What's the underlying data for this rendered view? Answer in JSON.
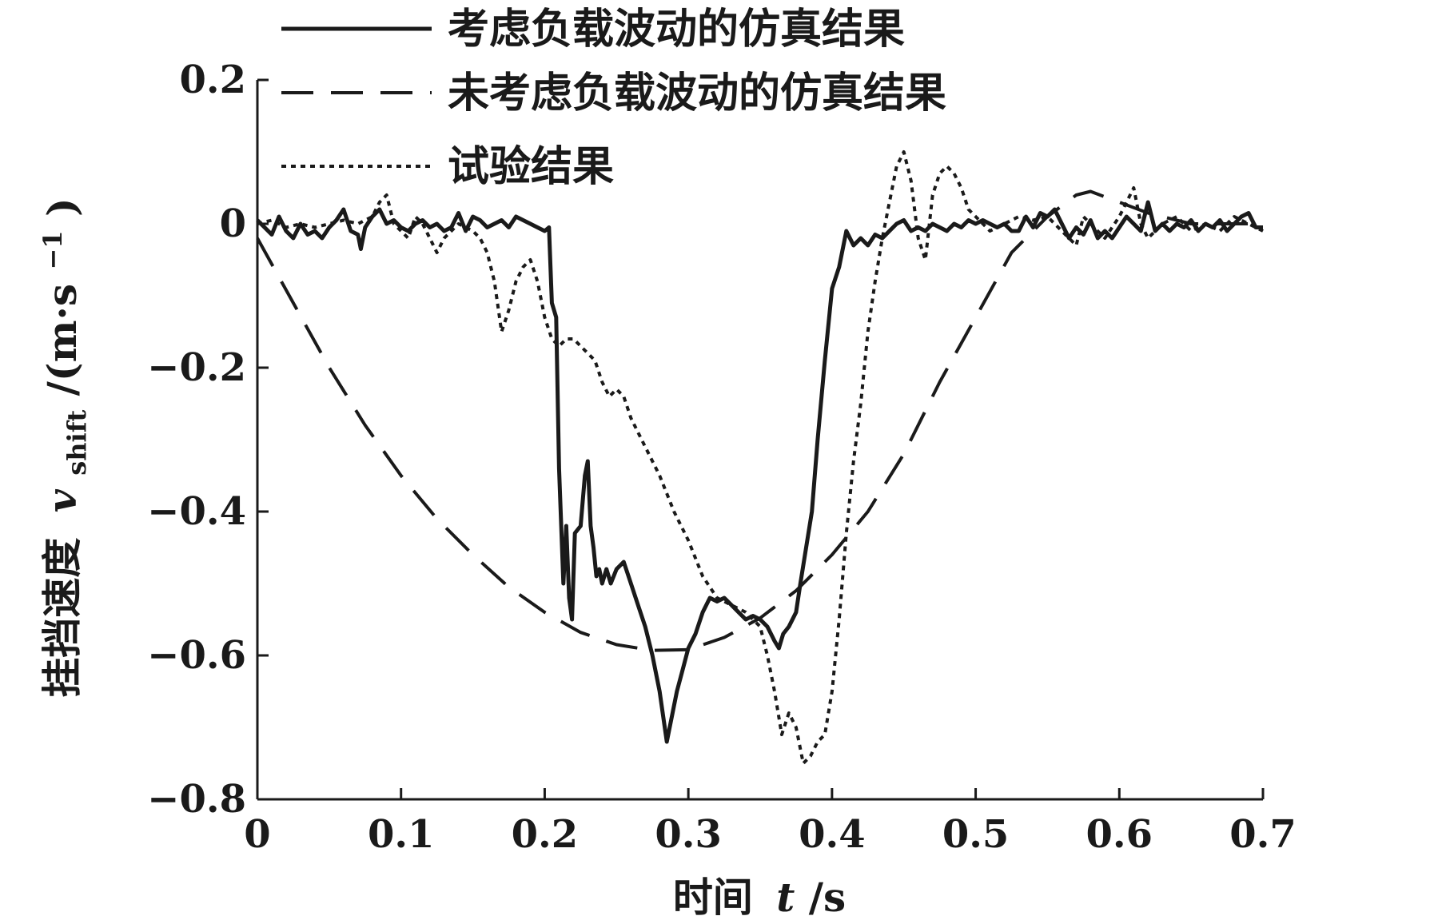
{
  "chart_data": {
    "type": "line",
    "xlabel": "时间 t/s",
    "ylabel": "挂挡速度 v_shift/(m·s⁻¹)",
    "xlim": [
      0,
      0.7
    ],
    "ylim": [
      -0.8,
      0.2
    ],
    "xticks": [
      0,
      0.1,
      0.2,
      0.3,
      0.4,
      0.5,
      0.6,
      0.7
    ],
    "xtick_labels": [
      "0",
      "0.1",
      "0.2",
      "0.3",
      "0.4",
      "0.5",
      "0.6",
      "0.7"
    ],
    "yticks": [
      0.2,
      0,
      -0.2,
      -0.4,
      -0.6,
      -0.8
    ],
    "ytick_labels": [
      "0.2",
      "0",
      "−0.2",
      "−0.4",
      "−0.6",
      "−0.8"
    ],
    "grid": false,
    "legend_position": "top",
    "series": [
      {
        "name": "考虑负载波动的仿真结果",
        "style": "solid",
        "color": "#1a1a1a",
        "points": [
          [
            0.0,
            0.005
          ],
          [
            0.005,
            -0.005
          ],
          [
            0.01,
            -0.015
          ],
          [
            0.015,
            0.01
          ],
          [
            0.02,
            -0.01
          ],
          [
            0.025,
            -0.02
          ],
          [
            0.03,
            0.0
          ],
          [
            0.035,
            -0.015
          ],
          [
            0.04,
            -0.01
          ],
          [
            0.045,
            -0.02
          ],
          [
            0.05,
            -0.005
          ],
          [
            0.055,
            0.005
          ],
          [
            0.06,
            0.02
          ],
          [
            0.065,
            -0.01
          ],
          [
            0.07,
            -0.015
          ],
          [
            0.072,
            -0.035
          ],
          [
            0.075,
            -0.005
          ],
          [
            0.08,
            0.01
          ],
          [
            0.085,
            0.02
          ],
          [
            0.09,
            0.0
          ],
          [
            0.095,
            0.005
          ],
          [
            0.1,
            -0.005
          ],
          [
            0.105,
            -0.01
          ],
          [
            0.11,
            0.0
          ],
          [
            0.115,
            0.005
          ],
          [
            0.12,
            -0.005
          ],
          [
            0.125,
            0.0
          ],
          [
            0.13,
            -0.01
          ],
          [
            0.135,
            -0.005
          ],
          [
            0.14,
            0.015
          ],
          [
            0.145,
            -0.01
          ],
          [
            0.15,
            0.01
          ],
          [
            0.155,
            0.005
          ],
          [
            0.16,
            -0.005
          ],
          [
            0.165,
            0.0
          ],
          [
            0.17,
            0.005
          ],
          [
            0.175,
            -0.005
          ],
          [
            0.18,
            0.01
          ],
          [
            0.185,
            0.005
          ],
          [
            0.19,
            0.0
          ],
          [
            0.195,
            -0.005
          ],
          [
            0.2,
            -0.01
          ],
          [
            0.203,
            -0.005
          ],
          [
            0.205,
            -0.11
          ],
          [
            0.208,
            -0.13
          ],
          [
            0.21,
            -0.34
          ],
          [
            0.213,
            -0.5
          ],
          [
            0.215,
            -0.42
          ],
          [
            0.217,
            -0.52
          ],
          [
            0.219,
            -0.55
          ],
          [
            0.221,
            -0.43
          ],
          [
            0.225,
            -0.42
          ],
          [
            0.228,
            -0.35
          ],
          [
            0.23,
            -0.33
          ],
          [
            0.232,
            -0.42
          ],
          [
            0.234,
            -0.45
          ],
          [
            0.236,
            -0.49
          ],
          [
            0.238,
            -0.48
          ],
          [
            0.24,
            -0.5
          ],
          [
            0.243,
            -0.48
          ],
          [
            0.246,
            -0.5
          ],
          [
            0.25,
            -0.48
          ],
          [
            0.255,
            -0.47
          ],
          [
            0.26,
            -0.5
          ],
          [
            0.265,
            -0.53
          ],
          [
            0.27,
            -0.56
          ],
          [
            0.275,
            -0.6
          ],
          [
            0.28,
            -0.65
          ],
          [
            0.285,
            -0.72
          ],
          [
            0.288,
            -0.69
          ],
          [
            0.292,
            -0.65
          ],
          [
            0.296,
            -0.62
          ],
          [
            0.3,
            -0.59
          ],
          [
            0.305,
            -0.57
          ],
          [
            0.31,
            -0.54
          ],
          [
            0.315,
            -0.52
          ],
          [
            0.32,
            -0.525
          ],
          [
            0.325,
            -0.52
          ],
          [
            0.33,
            -0.53
          ],
          [
            0.335,
            -0.54
          ],
          [
            0.34,
            -0.55
          ],
          [
            0.345,
            -0.545
          ],
          [
            0.35,
            -0.55
          ],
          [
            0.355,
            -0.56
          ],
          [
            0.36,
            -0.58
          ],
          [
            0.363,
            -0.59
          ],
          [
            0.366,
            -0.57
          ],
          [
            0.37,
            -0.56
          ],
          [
            0.375,
            -0.54
          ],
          [
            0.378,
            -0.5
          ],
          [
            0.382,
            -0.45
          ],
          [
            0.386,
            -0.4
          ],
          [
            0.39,
            -0.3
          ],
          [
            0.395,
            -0.19
          ],
          [
            0.4,
            -0.09
          ],
          [
            0.405,
            -0.06
          ],
          [
            0.41,
            -0.01
          ],
          [
            0.415,
            -0.03
          ],
          [
            0.42,
            -0.02
          ],
          [
            0.425,
            -0.03
          ],
          [
            0.43,
            -0.015
          ],
          [
            0.435,
            -0.02
          ],
          [
            0.44,
            -0.01
          ],
          [
            0.445,
            0.0
          ],
          [
            0.45,
            0.005
          ],
          [
            0.455,
            -0.01
          ],
          [
            0.46,
            -0.005
          ],
          [
            0.465,
            -0.01
          ],
          [
            0.47,
            0.0
          ],
          [
            0.475,
            -0.005
          ],
          [
            0.48,
            -0.01
          ],
          [
            0.485,
            0.0
          ],
          [
            0.49,
            -0.005
          ],
          [
            0.495,
            0.005
          ],
          [
            0.5,
            0.0
          ],
          [
            0.505,
            0.005
          ],
          [
            0.51,
            0.0
          ],
          [
            0.515,
            -0.005
          ],
          [
            0.52,
            0.0
          ],
          [
            0.525,
            -0.01
          ],
          [
            0.53,
            -0.01
          ],
          [
            0.535,
            0.01
          ],
          [
            0.54,
            -0.005
          ],
          [
            0.545,
            0.015
          ],
          [
            0.55,
            0.01
          ],
          [
            0.555,
            0.02
          ],
          [
            0.56,
            0.0
          ],
          [
            0.565,
            -0.02
          ],
          [
            0.57,
            -0.005
          ],
          [
            0.575,
            -0.015
          ],
          [
            0.58,
            0.005
          ],
          [
            0.585,
            -0.02
          ],
          [
            0.59,
            -0.01
          ],
          [
            0.595,
            -0.02
          ],
          [
            0.6,
            -0.005
          ],
          [
            0.605,
            0.01
          ],
          [
            0.61,
            0.0
          ],
          [
            0.615,
            -0.01
          ],
          [
            0.62,
            0.03
          ],
          [
            0.625,
            -0.01
          ],
          [
            0.63,
            0.0
          ],
          [
            0.635,
            -0.01
          ],
          [
            0.64,
            0.0
          ],
          [
            0.645,
            -0.005
          ],
          [
            0.65,
            0.005
          ],
          [
            0.655,
            -0.01
          ],
          [
            0.66,
            0.0
          ],
          [
            0.665,
            -0.005
          ],
          [
            0.67,
            0.005
          ],
          [
            0.675,
            -0.01
          ],
          [
            0.68,
            0.0
          ],
          [
            0.685,
            0.01
          ],
          [
            0.69,
            0.015
          ],
          [
            0.695,
            -0.005
          ],
          [
            0.7,
            -0.005
          ]
        ]
      },
      {
        "name": "未考虑负载波动的仿真结果",
        "style": "dashed",
        "color": "#1a1a1a",
        "points": [
          [
            0.0,
            -0.02
          ],
          [
            0.025,
            -0.11
          ],
          [
            0.05,
            -0.2
          ],
          [
            0.075,
            -0.28
          ],
          [
            0.1,
            -0.35
          ],
          [
            0.125,
            -0.41
          ],
          [
            0.15,
            -0.46
          ],
          [
            0.175,
            -0.505
          ],
          [
            0.2,
            -0.54
          ],
          [
            0.225,
            -0.568
          ],
          [
            0.25,
            -0.585
          ],
          [
            0.275,
            -0.593
          ],
          [
            0.3,
            -0.592
          ],
          [
            0.325,
            -0.575
          ],
          [
            0.35,
            -0.548
          ],
          [
            0.375,
            -0.51
          ],
          [
            0.4,
            -0.46
          ],
          [
            0.425,
            -0.4
          ],
          [
            0.45,
            -0.32
          ],
          [
            0.475,
            -0.22
          ],
          [
            0.5,
            -0.13
          ],
          [
            0.525,
            -0.04
          ],
          [
            0.55,
            0.01
          ],
          [
            0.57,
            0.04
          ],
          [
            0.58,
            0.045
          ],
          [
            0.6,
            0.03
          ],
          [
            0.62,
            0.015
          ],
          [
            0.65,
            0.0
          ],
          [
            0.7,
            0.0
          ]
        ]
      },
      {
        "name": "试验结果",
        "style": "dotted",
        "color": "#1a1a1a",
        "points": [
          [
            0.0,
            0.0
          ],
          [
            0.01,
            0.005
          ],
          [
            0.02,
            -0.005
          ],
          [
            0.03,
            0.0
          ],
          [
            0.04,
            -0.005
          ],
          [
            0.05,
            0.0
          ],
          [
            0.06,
            0.005
          ],
          [
            0.07,
            0.0
          ],
          [
            0.08,
            0.01
          ],
          [
            0.085,
            0.03
          ],
          [
            0.09,
            0.04
          ],
          [
            0.095,
            0.0
          ],
          [
            0.1,
            -0.01
          ],
          [
            0.105,
            -0.02
          ],
          [
            0.11,
            0.01
          ],
          [
            0.115,
            0.0
          ],
          [
            0.12,
            -0.02
          ],
          [
            0.125,
            -0.04
          ],
          [
            0.13,
            -0.02
          ],
          [
            0.14,
            0.0
          ],
          [
            0.15,
            -0.01
          ],
          [
            0.155,
            -0.02
          ],
          [
            0.16,
            -0.04
          ],
          [
            0.165,
            -0.08
          ],
          [
            0.17,
            -0.15
          ],
          [
            0.175,
            -0.12
          ],
          [
            0.18,
            -0.08
          ],
          [
            0.185,
            -0.06
          ],
          [
            0.19,
            -0.05
          ],
          [
            0.195,
            -0.08
          ],
          [
            0.2,
            -0.13
          ],
          [
            0.205,
            -0.16
          ],
          [
            0.21,
            -0.17
          ],
          [
            0.215,
            -0.16
          ],
          [
            0.22,
            -0.16
          ],
          [
            0.225,
            -0.17
          ],
          [
            0.23,
            -0.18
          ],
          [
            0.235,
            -0.19
          ],
          [
            0.24,
            -0.22
          ],
          [
            0.245,
            -0.24
          ],
          [
            0.25,
            -0.23
          ],
          [
            0.255,
            -0.24
          ],
          [
            0.26,
            -0.27
          ],
          [
            0.27,
            -0.31
          ],
          [
            0.28,
            -0.35
          ],
          [
            0.29,
            -0.4
          ],
          [
            0.3,
            -0.44
          ],
          [
            0.31,
            -0.49
          ],
          [
            0.32,
            -0.52
          ],
          [
            0.33,
            -0.53
          ],
          [
            0.34,
            -0.54
          ],
          [
            0.35,
            -0.56
          ],
          [
            0.355,
            -0.6
          ],
          [
            0.36,
            -0.65
          ],
          [
            0.365,
            -0.71
          ],
          [
            0.37,
            -0.68
          ],
          [
            0.375,
            -0.7
          ],
          [
            0.38,
            -0.75
          ],
          [
            0.385,
            -0.74
          ],
          [
            0.39,
            -0.72
          ],
          [
            0.395,
            -0.71
          ],
          [
            0.4,
            -0.65
          ],
          [
            0.405,
            -0.55
          ],
          [
            0.41,
            -0.43
          ],
          [
            0.415,
            -0.33
          ],
          [
            0.42,
            -0.25
          ],
          [
            0.425,
            -0.15
          ],
          [
            0.43,
            -0.08
          ],
          [
            0.435,
            -0.02
          ],
          [
            0.44,
            0.03
          ],
          [
            0.445,
            0.08
          ],
          [
            0.45,
            0.1
          ],
          [
            0.455,
            0.06
          ],
          [
            0.46,
            -0.02
          ],
          [
            0.465,
            -0.05
          ],
          [
            0.47,
            0.04
          ],
          [
            0.475,
            0.07
          ],
          [
            0.48,
            0.08
          ],
          [
            0.485,
            0.07
          ],
          [
            0.49,
            0.05
          ],
          [
            0.495,
            0.02
          ],
          [
            0.5,
            0.01
          ],
          [
            0.505,
            0.0
          ],
          [
            0.51,
            -0.01
          ],
          [
            0.52,
            0.0
          ],
          [
            0.53,
            0.01
          ],
          [
            0.54,
            0.005
          ],
          [
            0.55,
            0.01
          ],
          [
            0.56,
            -0.01
          ],
          [
            0.57,
            -0.03
          ],
          [
            0.575,
            0.01
          ],
          [
            0.58,
            0.0
          ],
          [
            0.59,
            -0.02
          ],
          [
            0.6,
            0.01
          ],
          [
            0.605,
            0.03
          ],
          [
            0.61,
            0.05
          ],
          [
            0.615,
            0.0
          ],
          [
            0.62,
            -0.02
          ],
          [
            0.63,
            0.0
          ],
          [
            0.64,
            0.01
          ],
          [
            0.65,
            -0.01
          ],
          [
            0.66,
            0.0
          ],
          [
            0.67,
            -0.01
          ],
          [
            0.68,
            0.01
          ],
          [
            0.69,
            0.0
          ],
          [
            0.7,
            -0.01
          ]
        ]
      }
    ]
  },
  "legend": {
    "solid_label": "考虑负载波动的仿真结果",
    "dashed_label": "未考虑负载波动的仿真结果",
    "dotted_label": "试验结果"
  },
  "axes": {
    "x_title_cn": "时间",
    "x_title_var": "t",
    "x_title_unit": "/s",
    "y_title_cn": "挂挡速度",
    "y_title_var": "v",
    "y_title_sub": "shift",
    "y_title_unit_a": "/(m·s",
    "y_title_unit_sup": "−1",
    "y_title_unit_b": ")"
  }
}
